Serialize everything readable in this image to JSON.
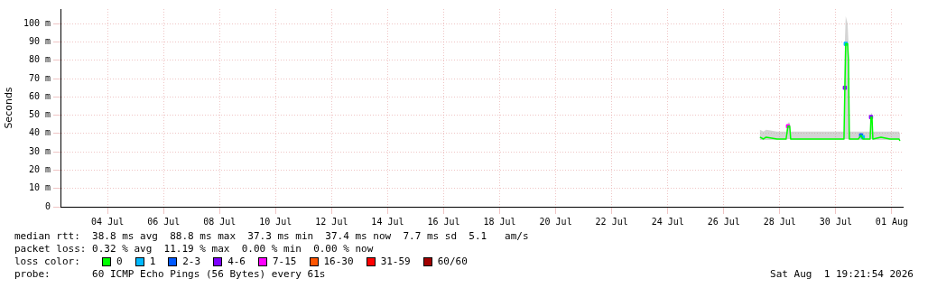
{
  "chart_data": {
    "type": "line",
    "ylabel": "Seconds",
    "legend_title": "loss color:",
    "legend": "bottom",
    "grid": true,
    "marker": "none",
    "line_style": "solid",
    "x": [
      "2026-07-27T07:00",
      "2026-07-27T10:00",
      "2026-07-27T12:20",
      "2026-07-27T21:40",
      "2026-07-28T05:25",
      "2026-07-28T07:00",
      "2026-07-28T08:30",
      "2026-07-28T09:20",
      "2026-07-28T20:55",
      "2026-07-29T12:25",
      "2026-07-30T07:00",
      "2026-07-30T07:45",
      "2026-07-30T08:30",
      "2026-07-30T10:05",
      "2026-07-30T10:50",
      "2026-07-30T11:35",
      "2026-07-30T19:20",
      "2026-07-30T21:40",
      "2026-07-30T23:10",
      "2026-07-31T03:05",
      "2026-07-31T05:25",
      "2026-07-31T06:10",
      "2026-07-31T07:00",
      "2026-07-31T07:45",
      "2026-07-31T14:40",
      "2026-07-31T22:25",
      "2026-08-01T06:10",
      "2026-08-01T06:55"
    ],
    "xlim": [
      "2026-07-02T07:40",
      "2026-08-01T09:20"
    ],
    "xticks": [
      {
        "value": "2026-07-04",
        "label": "04 Jul"
      },
      {
        "value": "2026-07-06",
        "label": "06 Jul"
      },
      {
        "value": "2026-07-08",
        "label": "08 Jul"
      },
      {
        "value": "2026-07-10",
        "label": "10 Jul"
      },
      {
        "value": "2026-07-12",
        "label": "12 Jul"
      },
      {
        "value": "2026-07-14",
        "label": "14 Jul"
      },
      {
        "value": "2026-07-16",
        "label": "16 Jul"
      },
      {
        "value": "2026-07-18",
        "label": "18 Jul"
      },
      {
        "value": "2026-07-20",
        "label": "20 Jul"
      },
      {
        "value": "2026-07-22",
        "label": "22 Jul"
      },
      {
        "value": "2026-07-24",
        "label": "24 Jul"
      },
      {
        "value": "2026-07-26",
        "label": "26 Jul"
      },
      {
        "value": "2026-07-28",
        "label": "28 Jul"
      },
      {
        "value": "2026-07-30",
        "label": "30 Jul"
      },
      {
        "value": "2026-08-01",
        "label": "01 Aug"
      }
    ],
    "ylim": [
      0,
      108
    ],
    "yticks": [
      0,
      {
        "value": 10,
        "label": "10 m"
      },
      {
        "value": 20,
        "label": "20 m"
      },
      {
        "value": 30,
        "label": "30 m"
      },
      {
        "value": 40,
        "label": "40 m"
      },
      {
        "value": 50,
        "label": "50 m"
      },
      {
        "value": 60,
        "label": "60 m"
      },
      {
        "value": 70,
        "label": "70 m"
      },
      {
        "value": 80,
        "label": "80 m"
      },
      {
        "value": 90,
        "label": "90 m"
      },
      {
        "value": 100,
        "label": "100 m"
      }
    ],
    "series": [
      {
        "name": "0",
        "color": "#00ff00",
        "values": [
          38,
          37,
          38,
          37,
          37,
          44,
          44,
          37,
          37,
          37,
          37,
          65,
          89,
          89,
          80,
          37,
          37,
          39,
          37,
          37,
          37,
          49,
          49,
          37,
          38,
          37,
          37,
          36
        ],
        "lower": [
          36.5,
          36.5,
          36.5,
          36.5,
          36.5,
          37,
          37,
          36.5,
          36.5,
          36.5,
          36.5,
          37,
          37,
          37,
          37,
          36.5,
          36.5,
          36.5,
          36.5,
          36.5,
          36.5,
          37,
          37,
          36.5,
          36.5,
          36.5,
          36.5,
          35.5
        ],
        "upper": [
          42,
          41,
          42,
          41,
          41,
          46,
          46,
          41,
          41,
          41,
          41,
          90,
          104,
          100,
          90,
          41,
          41,
          41,
          41,
          41,
          41,
          51,
          51,
          41,
          41,
          41,
          41,
          40
        ]
      },
      {
        "name": "1",
        "color": "#00b8ff",
        "type": "scatter",
        "marker": "square",
        "values": [
          null,
          null,
          null,
          null,
          null,
          null,
          null,
          null,
          null,
          null,
          null,
          null,
          89,
          null,
          null,
          null,
          null,
          null,
          38,
          null,
          null,
          null,
          null,
          null,
          null,
          null,
          null,
          null
        ]
      },
      {
        "name": "2-3",
        "color": "#0059ff",
        "type": "scatter",
        "marker": "square",
        "values": [
          null,
          null,
          null,
          null,
          null,
          null,
          null,
          null,
          null,
          null,
          null,
          null,
          null,
          null,
          null,
          null,
          null,
          39,
          null,
          null,
          null,
          null,
          null,
          null,
          null,
          null,
          null,
          null
        ]
      },
      {
        "name": "4-6",
        "color": "#7e00ff",
        "type": "scatter",
        "marker": "square",
        "values": [
          null,
          null,
          null,
          null,
          null,
          null,
          null,
          null,
          null,
          null,
          null,
          65,
          null,
          null,
          null,
          null,
          null,
          null,
          null,
          null,
          null,
          49,
          null,
          null,
          null,
          null,
          null,
          null
        ]
      },
      {
        "name": "7-15",
        "color": "#ff00ff",
        "type": "scatter",
        "marker": "square",
        "values": [
          null,
          null,
          null,
          null,
          null,
          44,
          null,
          null,
          null,
          null,
          null,
          null,
          null,
          null,
          null,
          null,
          null,
          null,
          null,
          null,
          null,
          null,
          null,
          null,
          null,
          null,
          null,
          null
        ]
      },
      {
        "name": "16-30",
        "color": "#ff5500",
        "type": "scatter",
        "marker": "square",
        "values": [
          null,
          null,
          null,
          null,
          null,
          null,
          null,
          null,
          null,
          null,
          null,
          null,
          null,
          null,
          null,
          null,
          null,
          null,
          null,
          null,
          null,
          null,
          null,
          null,
          null,
          null,
          null,
          null
        ]
      },
      {
        "name": "31-59",
        "color": "#ff0000",
        "type": "scatter",
        "marker": "square",
        "values": [
          null,
          null,
          null,
          null,
          null,
          null,
          null,
          null,
          null,
          null,
          null,
          null,
          null,
          null,
          null,
          null,
          null,
          null,
          null,
          null,
          null,
          null,
          null,
          null,
          null,
          null,
          null,
          null
        ]
      },
      {
        "name": "60/60",
        "color": "#a10000",
        "type": "scatter",
        "marker": "square",
        "values": [
          null,
          null,
          null,
          null,
          null,
          null,
          null,
          null,
          null,
          null,
          null,
          null,
          null,
          null,
          null,
          null,
          null,
          null,
          null,
          null,
          null,
          null,
          null,
          null,
          null,
          null,
          null,
          null
        ]
      }
    ],
    "annotations": [
      "median rtt:  38.8 ms avg  88.8 ms max  37.3 ms min  37.4 ms now  7.7 ms sd  5.1   am/s",
      "packet loss: 0.32 % avg  11.19 % max  0.00 % min  0.00 % now",
      "probe:       60 ICMP Echo Pings (56 Bytes) every 61s",
      "Sat Aug  1 19:21:54 2026"
    ]
  }
}
